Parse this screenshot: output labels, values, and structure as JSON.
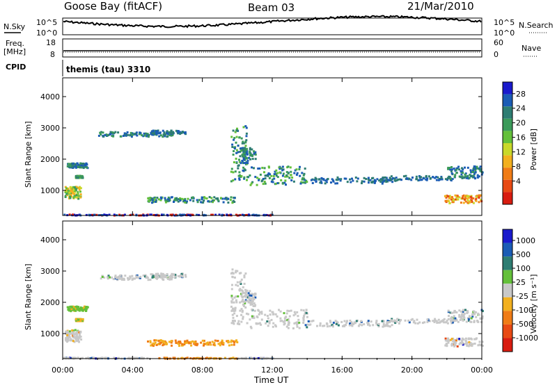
{
  "header": {
    "station": "Goose Bay (fitACF)",
    "beam": "Beam 03",
    "date": "21/Mar/2010"
  },
  "top_panels": {
    "nsky_label": "N.Sky",
    "nsky_ticks": [
      "10^5",
      "10^0"
    ],
    "nsearch_label": "N.Search",
    "nsearch_ticks": [
      "10^5",
      "10^0"
    ],
    "freq_label": "Freq.",
    "freq_unit": "[MHz]",
    "freq_ticks": [
      "18",
      "8"
    ],
    "nave_label": "Nave",
    "nave_ticks": [
      "60",
      "0"
    ],
    "cpid_label": "CPID",
    "cpid_value": "themis (tau) 3310"
  },
  "chart_data": [
    {
      "type": "heatmap",
      "panel": "power",
      "ylabel": "Slant Range [km]",
      "xlabel": "",
      "yticks": [
        "1000",
        "2000",
        "3000",
        "4000"
      ],
      "ylim": [
        200,
        4600
      ],
      "xlim": [
        0,
        24
      ],
      "colorbar": {
        "label": "Power [dB]",
        "ticks": [
          "28",
          "24",
          "20",
          "16",
          "12",
          "8",
          "4"
        ],
        "colors": [
          "#1a1acc",
          "#1b5cb5",
          "#2e7d72",
          "#3b9a5a",
          "#64c03a",
          "#c9d82a",
          "#f2b01f",
          "#f07c16",
          "#e84a14",
          "#d81c10"
        ]
      }
    },
    {
      "type": "heatmap",
      "panel": "velocity",
      "ylabel": "Slant Range [km]",
      "xlabel": "Time UT",
      "yticks": [
        "1000",
        "2000",
        "3000",
        "4000"
      ],
      "xticks": [
        "00:00",
        "04:00",
        "08:00",
        "12:00",
        "16:00",
        "20:00",
        "00:00"
      ],
      "ylim": [
        200,
        4600
      ],
      "xlim": [
        0,
        24
      ],
      "colorbar": {
        "label": "Velocity [m s⁻¹]",
        "ticks": [
          "1000",
          "500",
          "100",
          "25",
          "-25",
          "-100",
          "-500",
          "-1000"
        ],
        "colors": [
          "#1a1acc",
          "#1b5cb5",
          "#2e7d72",
          "#64c03a",
          "#c8c8c8",
          "#f2b01f",
          "#f07c16",
          "#e84a14",
          "#d81c10"
        ]
      }
    }
  ]
}
